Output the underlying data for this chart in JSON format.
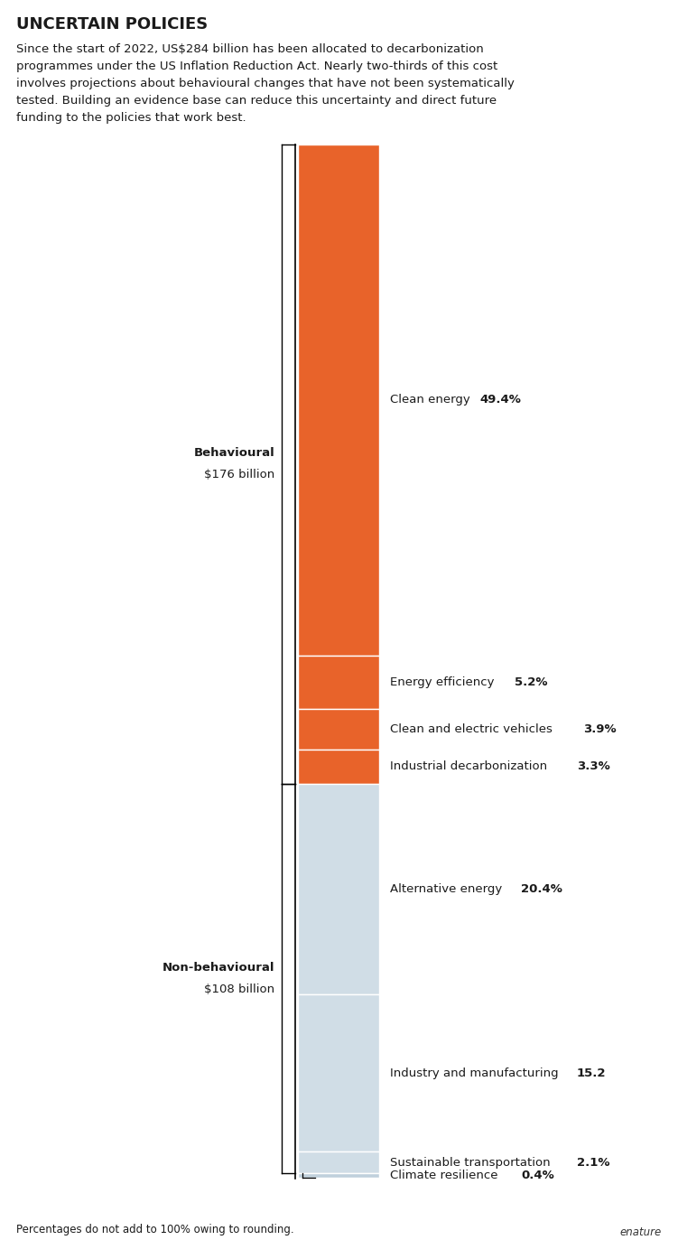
{
  "title": "UNCERTAIN POLICIES",
  "subtitle": "Since the start of 2022, US$284 billion has been allocated to decarbonization\nprogrammes under the US Inflation Reduction Act. Nearly two-thirds of this cost\ninvolves projections about behavioural changes that have not been systematically\ntested. Building an evidence base can reduce this uncertainty and direct future\nfunding to the policies that work best.",
  "footnote": "Percentages do not add to 100% owing to rounding.",
  "nature_label": "enature",
  "segments": [
    {
      "label": "Clean energy",
      "pct": 49.4,
      "pct_str": "49.4%",
      "color": "#E8632A",
      "group": "behavioural"
    },
    {
      "label": "Energy efficiency",
      "pct": 5.2,
      "pct_str": "5.2%",
      "color": "#E8632A",
      "group": "behavioural"
    },
    {
      "label": "Clean and electric vehicles",
      "pct": 3.9,
      "pct_str": "3.9%",
      "color": "#E8632A",
      "group": "behavioural"
    },
    {
      "label": "Industrial decarbonization",
      "pct": 3.3,
      "pct_str": "3.3%",
      "color": "#E8632A",
      "group": "behavioural"
    },
    {
      "label": "Alternative energy",
      "pct": 20.4,
      "pct_str": "20.4%",
      "color": "#D0DDE6",
      "group": "non-behavioural"
    },
    {
      "label": "Industry and manufacturing",
      "pct": 15.2,
      "pct_str": "15.2",
      "color": "#D0DDE6",
      "group": "non-behavioural"
    },
    {
      "label": "Sustainable transportation",
      "pct": 2.1,
      "pct_str": "2.1%",
      "color": "#D0DDE6",
      "group": "non-behavioural"
    },
    {
      "label": "Climate resilience",
      "pct": 0.4,
      "pct_str": "0.4%",
      "color": "#C0D0DC",
      "group": "non-behavioural"
    }
  ],
  "behavioural_label": "Behavioural",
  "behavioural_value": "$176 billion",
  "non_behavioural_label": "Non-behavioural",
  "non_behavioural_value": "$108 billion",
  "title_fontsize": 13,
  "subtitle_fontsize": 9.5,
  "label_fontsize": 9.5,
  "footnote_fontsize": 8.5,
  "bg_color": "#FFFFFF",
  "text_color": "#1a1a1a"
}
